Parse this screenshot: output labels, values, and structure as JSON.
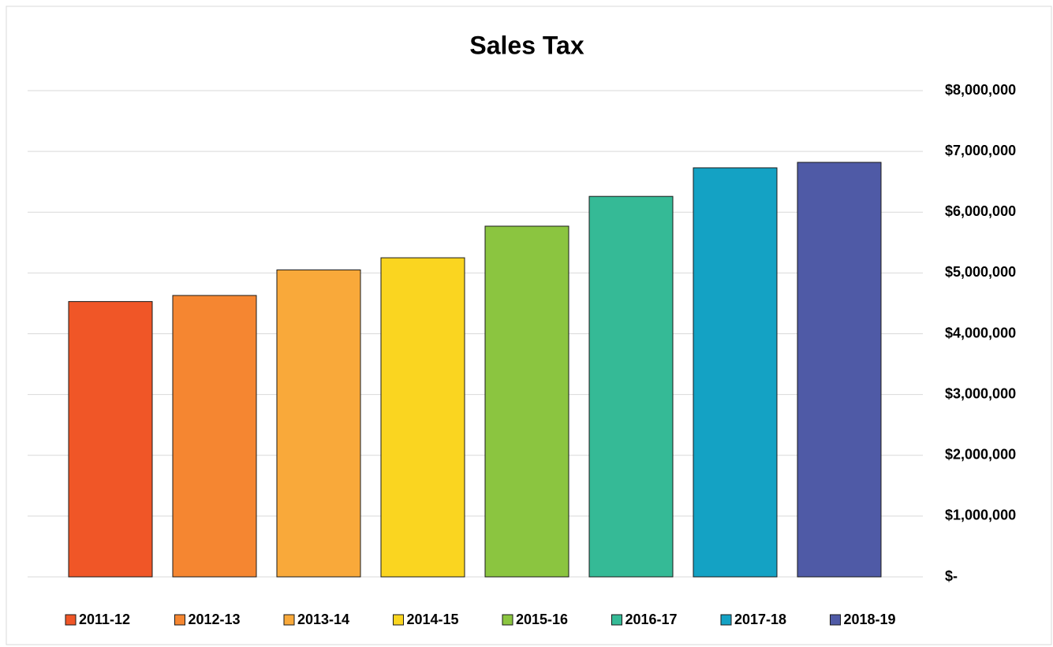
{
  "chart_data": {
    "type": "bar",
    "title": "Sales Tax",
    "series": [
      {
        "name": "2011-12",
        "color": "#f05627",
        "values": [
          4530000
        ]
      },
      {
        "name": "2012-13",
        "color": "#f58631",
        "values": [
          4630000
        ]
      },
      {
        "name": "2013-14",
        "color": "#f9a93a",
        "values": [
          5050000
        ]
      },
      {
        "name": "2014-15",
        "color": "#fad520",
        "values": [
          5250000
        ]
      },
      {
        "name": "2015-16",
        "color": "#8bc540",
        "values": [
          5770000
        ]
      },
      {
        "name": "2016-17",
        "color": "#35ba96",
        "values": [
          6260000
        ]
      },
      {
        "name": "2017-18",
        "color": "#14a2c4",
        "values": [
          6730000
        ]
      },
      {
        "name": "2018-19",
        "color": "#4f5aa6",
        "values": [
          6820000
        ]
      }
    ],
    "ylim": [
      0,
      8000000
    ],
    "yticks": [
      {
        "value": 0,
        "label": "$-"
      },
      {
        "value": 1000000,
        "label": "$1,000,000"
      },
      {
        "value": 2000000,
        "label": "$2,000,000"
      },
      {
        "value": 3000000,
        "label": "$3,000,000"
      },
      {
        "value": 4000000,
        "label": "$4,000,000"
      },
      {
        "value": 5000000,
        "label": "$5,000,000"
      },
      {
        "value": 6000000,
        "label": "$6,000,000"
      },
      {
        "value": 7000000,
        "label": "$7,000,000"
      },
      {
        "value": 8000000,
        "label": "$8,000,000"
      }
    ],
    "grid": true,
    "legend": "bottom"
  }
}
